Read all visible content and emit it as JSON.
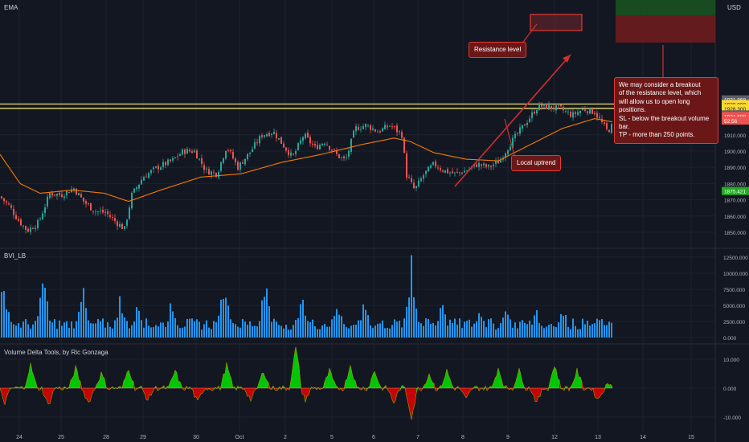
{
  "header": {
    "indicator_ema": "EMA",
    "currency": "USD",
    "pane2_title": "BVI_LB",
    "pane3_title": "Volume Delta Tools, by Ric Gonzaga"
  },
  "annotations": {
    "resistance": "Resistance level",
    "uptrend": "Local uptrend",
    "note_lines": [
      "We may consider a breakout",
      "of the resistance level, which",
      "will allow us to open long positions.",
      "SL - below the breakout volume bar.",
      "TP - more than 250 points."
    ]
  },
  "colors": {
    "background": "#131722",
    "bull": "#26a69a",
    "bear": "#ef5350",
    "ema": "#f57c00",
    "resistance_line": "#fff176",
    "volume": "#2196f3",
    "delta_pos": "#00e500",
    "delta_neg": "#e60000",
    "annotation": "#e53935"
  },
  "chart_data": [
    {
      "type": "candlestick",
      "title": "",
      "x_ticks": [
        "24",
        "25",
        "28",
        "29",
        "30",
        "Oct",
        "2",
        "5",
        "6",
        "7",
        "8",
        "9",
        "12",
        "13",
        "14",
        "15"
      ],
      "y_ticks": [
        "1850.000",
        "1860.000",
        "1870.000",
        "1880.000",
        "1890.000",
        "1900.000",
        "1910.000"
      ],
      "ylim": [
        1845,
        1935
      ],
      "price_labels": [
        {
          "text": "1931.868",
          "value": 1931.868,
          "color": "#5d606b"
        },
        {
          "text": "1929.000",
          "value": 1929.0,
          "color": "#fdd835"
        },
        {
          "text": "1926.300",
          "value": 1926.3,
          "color": "#fdd835"
        },
        {
          "text": "1922.629",
          "value": 1922.629,
          "color": "#5d606b"
        },
        {
          "text": "1921.588",
          "value": 1921.588,
          "color": "#ef5350"
        },
        {
          "text": "52:56",
          "value": 1918.8,
          "color": "#ef5350"
        },
        {
          "text": "1875.421",
          "value": 1875.421,
          "color": "#22ab22"
        }
      ],
      "resistance_levels": [
        1929.0,
        1926.3
      ],
      "close_path": [
        {
          "t": 0,
          "p": 1872
        },
        {
          "t": 12,
          "p": 1866
        },
        {
          "t": 22,
          "p": 1858
        },
        {
          "t": 34,
          "p": 1851
        },
        {
          "t": 48,
          "p": 1856
        },
        {
          "t": 62,
          "p": 1874
        },
        {
          "t": 76,
          "p": 1873
        },
        {
          "t": 92,
          "p": 1877
        },
        {
          "t": 104,
          "p": 1869
        },
        {
          "t": 118,
          "p": 1863
        },
        {
          "t": 132,
          "p": 1862
        },
        {
          "t": 145,
          "p": 1856
        },
        {
          "t": 155,
          "p": 1852
        },
        {
          "t": 164,
          "p": 1873
        },
        {
          "t": 178,
          "p": 1884
        },
        {
          "t": 196,
          "p": 1890
        },
        {
          "t": 214,
          "p": 1894
        },
        {
          "t": 228,
          "p": 1900
        },
        {
          "t": 242,
          "p": 1900
        },
        {
          "t": 256,
          "p": 1888
        },
        {
          "t": 270,
          "p": 1886
        },
        {
          "t": 282,
          "p": 1903
        },
        {
          "t": 296,
          "p": 1890
        },
        {
          "t": 312,
          "p": 1900
        },
        {
          "t": 326,
          "p": 1910
        },
        {
          "t": 340,
          "p": 1912
        },
        {
          "t": 352,
          "p": 1904
        },
        {
          "t": 364,
          "p": 1896
        },
        {
          "t": 378,
          "p": 1910
        },
        {
          "t": 392,
          "p": 1902
        },
        {
          "t": 404,
          "p": 1906
        },
        {
          "t": 418,
          "p": 1898
        },
        {
          "t": 430,
          "p": 1894
        },
        {
          "t": 442,
          "p": 1914
        },
        {
          "t": 456,
          "p": 1916
        },
        {
          "t": 470,
          "p": 1912
        },
        {
          "t": 486,
          "p": 1916
        },
        {
          "t": 500,
          "p": 1910
        },
        {
          "t": 506,
          "p": 1885
        },
        {
          "t": 516,
          "p": 1876
        },
        {
          "t": 528,
          "p": 1886
        },
        {
          "t": 540,
          "p": 1892
        },
        {
          "t": 552,
          "p": 1888
        },
        {
          "t": 566,
          "p": 1886
        },
        {
          "t": 580,
          "p": 1888
        },
        {
          "t": 594,
          "p": 1892
        },
        {
          "t": 608,
          "p": 1890
        },
        {
          "t": 622,
          "p": 1894
        },
        {
          "t": 634,
          "p": 1904
        },
        {
          "t": 646,
          "p": 1912
        },
        {
          "t": 658,
          "p": 1920
        },
        {
          "t": 670,
          "p": 1928
        },
        {
          "t": 684,
          "p": 1927
        },
        {
          "t": 698,
          "p": 1926
        },
        {
          "t": 712,
          "p": 1922
        },
        {
          "t": 726,
          "p": 1926
        },
        {
          "t": 740,
          "p": 1924
        },
        {
          "t": 748,
          "p": 1918
        },
        {
          "t": 756,
          "p": 1912
        },
        {
          "t": 762,
          "p": 1916
        }
      ],
      "ema_path": [
        {
          "t": 0,
          "p": 1898
        },
        {
          "t": 25,
          "p": 1880
        },
        {
          "t": 50,
          "p": 1874
        },
        {
          "t": 90,
          "p": 1876
        },
        {
          "t": 130,
          "p": 1874
        },
        {
          "t": 160,
          "p": 1869
        },
        {
          "t": 200,
          "p": 1876
        },
        {
          "t": 250,
          "p": 1884
        },
        {
          "t": 300,
          "p": 1886
        },
        {
          "t": 350,
          "p": 1893
        },
        {
          "t": 400,
          "p": 1898
        },
        {
          "t": 450,
          "p": 1904
        },
        {
          "t": 490,
          "p": 1908
        },
        {
          "t": 510,
          "p": 1906
        },
        {
          "t": 540,
          "p": 1899
        },
        {
          "t": 580,
          "p": 1895
        },
        {
          "t": 620,
          "p": 1894
        },
        {
          "t": 660,
          "p": 1904
        },
        {
          "t": 700,
          "p": 1914
        },
        {
          "t": 740,
          "p": 1920
        },
        {
          "t": 762,
          "p": 1918
        }
      ]
    },
    {
      "type": "bar",
      "title": "",
      "y_ticks": [
        "0.000",
        "2500.000",
        "5000.000",
        "7500.000",
        "10000.000",
        "12500.000"
      ],
      "ylim": [
        0,
        13000
      ],
      "peaks": [
        {
          "t": 4,
          "v": 9800
        },
        {
          "t": 54,
          "v": 10100
        },
        {
          "t": 102,
          "v": 9300
        },
        {
          "t": 150,
          "v": 7400
        },
        {
          "t": 172,
          "v": 6000
        },
        {
          "t": 214,
          "v": 6700
        },
        {
          "t": 280,
          "v": 10800
        },
        {
          "t": 330,
          "v": 9800
        },
        {
          "t": 376,
          "v": 8500
        },
        {
          "t": 420,
          "v": 6600
        },
        {
          "t": 454,
          "v": 6200
        },
        {
          "t": 512,
          "v": 12800
        },
        {
          "t": 550,
          "v": 6800
        },
        {
          "t": 598,
          "v": 5300
        },
        {
          "t": 630,
          "v": 5000
        },
        {
          "t": 668,
          "v": 4600
        },
        {
          "t": 700,
          "v": 5900
        },
        {
          "t": 752,
          "v": 2900
        }
      ]
    },
    {
      "type": "area",
      "title": "",
      "y_ticks": [
        "10.000",
        "0.000",
        "-10.000"
      ],
      "ylim": [
        -13,
        14
      ],
      "spikes": [
        {
          "t": 6,
          "v": -5
        },
        {
          "t": 38,
          "v": 8
        },
        {
          "t": 60,
          "v": -6
        },
        {
          "t": 94,
          "v": 7
        },
        {
          "t": 110,
          "v": -5
        },
        {
          "t": 126,
          "v": 5
        },
        {
          "t": 160,
          "v": 7
        },
        {
          "t": 184,
          "v": -4
        },
        {
          "t": 218,
          "v": 6
        },
        {
          "t": 246,
          "v": -5
        },
        {
          "t": 282,
          "v": 8
        },
        {
          "t": 312,
          "v": -4
        },
        {
          "t": 328,
          "v": 6
        },
        {
          "t": 368,
          "v": 14
        },
        {
          "t": 380,
          "v": -4
        },
        {
          "t": 410,
          "v": 6
        },
        {
          "t": 436,
          "v": 8
        },
        {
          "t": 466,
          "v": 6
        },
        {
          "t": 490,
          "v": -5
        },
        {
          "t": 512,
          "v": -10
        },
        {
          "t": 534,
          "v": 5
        },
        {
          "t": 556,
          "v": 6
        },
        {
          "t": 580,
          "v": -4
        },
        {
          "t": 620,
          "v": 7
        },
        {
          "t": 646,
          "v": 6
        },
        {
          "t": 668,
          "v": -5
        },
        {
          "t": 690,
          "v": 8
        },
        {
          "t": 718,
          "v": 6
        },
        {
          "t": 744,
          "v": -4
        },
        {
          "t": 760,
          "v": 2
        }
      ]
    }
  ]
}
